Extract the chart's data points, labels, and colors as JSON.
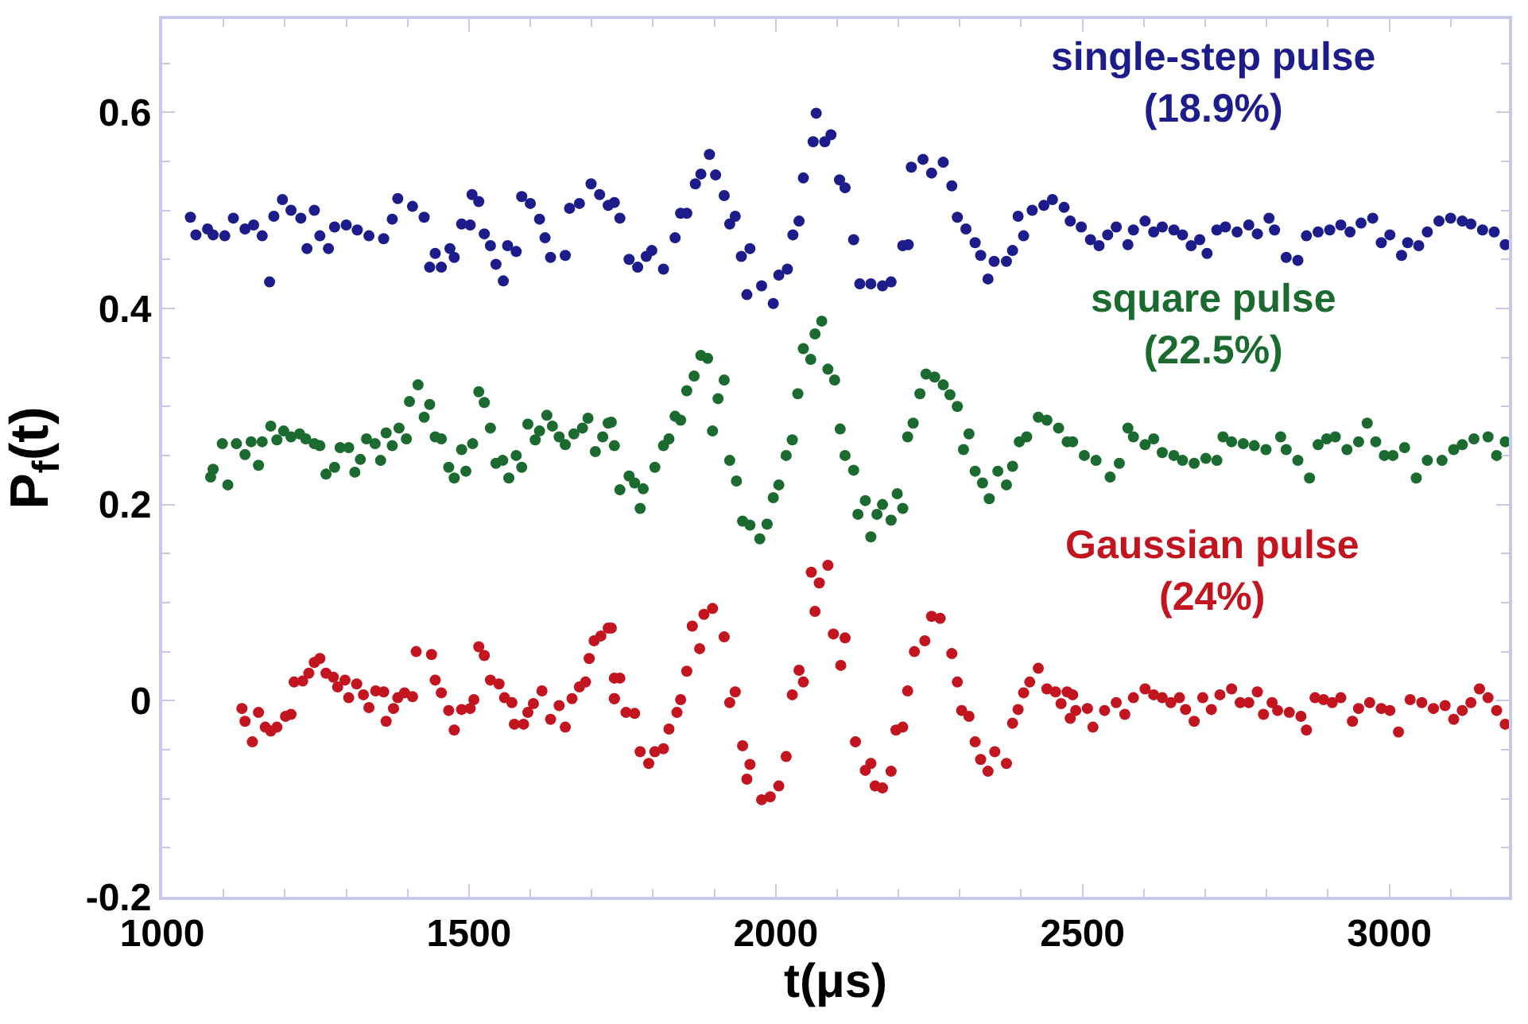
{
  "chart_data": {
    "type": "scatter",
    "xlabel": "t(μs)",
    "ylabel": "P$_{f}$(t)",
    "xlim": [
      1000,
      3195
    ],
    "ylim": [
      -0.2,
      0.695
    ],
    "xticks": [
      1000,
      1500,
      2000,
      2500,
      3000
    ],
    "yticks": [
      -0.2,
      0,
      0.2,
      0.4,
      0.6
    ],
    "legend": false,
    "marker": "circle",
    "series": [
      {
        "name": "single-step pulse\n(18.9%)",
        "color": "#1c1c8a",
        "x": [
          1046,
          1055,
          1074,
          1083,
          1102,
          1116,
          1135,
          1149,
          1163,
          1175,
          1182,
          1196,
          1210,
          1226,
          1236,
          1248,
          1257,
          1271,
          1281,
          1300,
          1318,
          1337,
          1361,
          1375,
          1384,
          1408,
          1427,
          1436,
          1455,
          1445,
          1469,
          1476,
          1488,
          1502,
          1505,
          1516,
          1525,
          1535,
          1544,
          1556,
          1563,
          1577,
          1586,
          1600,
          1615,
          1624,
          1633,
          1657,
          1664,
          1680,
          1699,
          1713,
          1727,
          1737,
          1746,
          1761,
          1775,
          1789,
          1798,
          1817,
          1836,
          1845,
          1855,
          1869,
          1878,
          1892,
          1902,
          1916,
          1925,
          1934,
          1944,
          1958,
          1953,
          1977,
          1996,
          2005,
          2019,
          2028,
          2038,
          2045,
          2061,
          2066,
          2080,
          2090,
          2104,
          2113,
          2127,
          2137,
          2155,
          2174,
          2188,
          2207,
          2216,
          2221,
          2240,
          2254,
          2273,
          2287,
          2296,
          2310,
          2325,
          2334,
          2346,
          2356,
          2376,
          2386,
          2395,
          2404,
          2418,
          2437,
          2451,
          2470,
          2480,
          2498,
          2513,
          2527,
          2541,
          2555,
          2574,
          2583,
          2602,
          2616,
          2630,
          2649,
          2663,
          2677,
          2691,
          2703,
          2719,
          2733,
          2752,
          2771,
          2785,
          2804,
          2813,
          2832,
          2851,
          2865,
          2884,
          2903,
          2921,
          2936,
          2954,
          2973,
          2987,
          3001,
          3020,
          3030,
          3048,
          3062,
          3081,
          3100,
          3119,
          3133,
          3152,
          3171,
          3189
        ],
        "values": [
          0.493,
          0.475,
          0.481,
          0.475,
          0.474,
          0.492,
          0.481,
          0.485,
          0.474,
          0.427,
          0.494,
          0.511,
          0.5,
          0.492,
          0.461,
          0.5,
          0.474,
          0.461,
          0.483,
          0.485,
          0.48,
          0.474,
          0.471,
          0.491,
          0.512,
          0.504,
          0.493,
          0.442,
          0.442,
          0.456,
          0.461,
          0.452,
          0.486,
          0.485,
          0.516,
          0.509,
          0.476,
          0.464,
          0.445,
          0.428,
          0.464,
          0.458,
          0.514,
          0.507,
          0.491,
          0.472,
          0.452,
          0.454,
          0.502,
          0.507,
          0.527,
          0.516,
          0.505,
          0.508,
          0.492,
          0.45,
          0.442,
          0.453,
          0.459,
          0.44,
          0.472,
          0.497,
          0.497,
          0.527,
          0.537,
          0.557,
          0.536,
          0.515,
          0.486,
          0.494,
          0.453,
          0.461,
          0.414,
          0.423,
          0.405,
          0.434,
          0.44,
          0.475,
          0.489,
          0.533,
          0.57,
          0.599,
          0.57,
          0.577,
          0.531,
          0.523,
          0.47,
          0.425,
          0.425,
          0.423,
          0.427,
          0.464,
          0.465,
          0.544,
          0.552,
          0.538,
          0.549,
          0.525,
          0.493,
          0.481,
          0.467,
          0.454,
          0.43,
          0.448,
          0.448,
          0.459,
          0.494,
          0.474,
          0.5,
          0.505,
          0.511,
          0.503,
          0.489,
          0.483,
          0.47,
          0.464,
          0.475,
          0.483,
          0.465,
          0.48,
          0.489,
          0.478,
          0.483,
          0.48,
          0.475,
          0.464,
          0.47,
          0.456,
          0.48,
          0.483,
          0.478,
          0.485,
          0.476,
          0.492,
          0.48,
          0.452,
          0.449,
          0.474,
          0.478,
          0.48,
          0.485,
          0.478,
          0.487,
          0.492,
          0.467,
          0.475,
          0.454,
          0.467,
          0.464,
          0.478,
          0.489,
          0.492,
          0.489,
          0.486,
          0.48,
          0.478,
          0.465
        ]
      },
      {
        "name": "square pulse\n(22.5%)",
        "color": "#1b6b30",
        "x": [
          1083,
          1079,
          1107,
          1098,
          1121,
          1135,
          1145,
          1157,
          1163,
          1177,
          1187,
          1198,
          1210,
          1224,
          1234,
          1248,
          1257,
          1267,
          1281,
          1290,
          1304,
          1314,
          1323,
          1333,
          1347,
          1356,
          1365,
          1375,
          1386,
          1398,
          1403,
          1417,
          1427,
          1436,
          1445,
          1455,
          1467,
          1476,
          1488,
          1495,
          1506,
          1516,
          1525,
          1535,
          1544,
          1555,
          1565,
          1577,
          1586,
          1596,
          1608,
          1615,
          1627,
          1636,
          1647,
          1657,
          1671,
          1685,
          1694,
          1706,
          1718,
          1727,
          1732,
          1737,
          1746,
          1761,
          1770,
          1784,
          1779,
          1803,
          1817,
          1826,
          1836,
          1845,
          1855,
          1867,
          1878,
          1889,
          1897,
          1906,
          1916,
          1925,
          1936,
          1946,
          1958,
          1974,
          1986,
          1996,
          2005,
          2017,
          2027,
          2036,
          2045,
          2057,
          2064,
          2075,
          2085,
          2096,
          2105,
          2113,
          2127,
          2134,
          2146,
          2155,
          2165,
          2174,
          2188,
          2198,
          2207,
          2215,
          2224,
          2235,
          2245,
          2259,
          2273,
          2284,
          2296,
          2306,
          2315,
          2325,
          2337,
          2348,
          2362,
          2376,
          2386,
          2397,
          2409,
          2428,
          2442,
          2461,
          2475,
          2484,
          2503,
          2522,
          2545,
          2560,
          2574,
          2583,
          2602,
          2616,
          2630,
          2649,
          2663,
          2682,
          2701,
          2719,
          2729,
          2743,
          2762,
          2780,
          2799,
          2823,
          2832,
          2851,
          2870,
          2884,
          2898,
          2912,
          2931,
          2950,
          2964,
          2978,
          2992,
          3006,
          3025,
          3044,
          3062,
          3086,
          3105,
          3119,
          3138,
          3161,
          3175,
          3189
        ],
        "values": [
          0.236,
          0.228,
          0.22,
          0.262,
          0.262,
          0.251,
          0.264,
          0.24,
          0.264,
          0.28,
          0.266,
          0.275,
          0.269,
          0.272,
          0.267,
          0.262,
          0.26,
          0.231,
          0.238,
          0.258,
          0.258,
          0.233,
          0.246,
          0.267,
          0.262,
          0.245,
          0.273,
          0.26,
          0.278,
          0.267,
          0.305,
          0.322,
          0.289,
          0.302,
          0.269,
          0.267,
          0.238,
          0.227,
          0.256,
          0.234,
          0.262,
          0.315,
          0.304,
          0.278,
          0.242,
          0.245,
          0.227,
          0.25,
          0.238,
          0.282,
          0.266,
          0.275,
          0.291,
          0.28,
          0.269,
          0.261,
          0.272,
          0.278,
          0.288,
          0.254,
          0.269,
          0.283,
          0.284,
          0.26,
          0.215,
          0.229,
          0.222,
          0.216,
          0.196,
          0.238,
          0.26,
          0.267,
          0.29,
          0.286,
          0.316,
          0.331,
          0.352,
          0.349,
          0.275,
          0.308,
          0.327,
          0.245,
          0.224,
          0.183,
          0.179,
          0.165,
          0.18,
          0.207,
          0.22,
          0.25,
          0.266,
          0.313,
          0.359,
          0.348,
          0.374,
          0.387,
          0.338,
          0.327,
          0.277,
          0.25,
          0.235,
          0.19,
          0.204,
          0.167,
          0.19,
          0.2,
          0.184,
          0.211,
          0.196,
          0.269,
          0.283,
          0.313,
          0.333,
          0.33,
          0.322,
          0.312,
          0.3,
          0.256,
          0.272,
          0.234,
          0.222,
          0.206,
          0.234,
          0.22,
          0.239,
          0.264,
          0.269,
          0.289,
          0.286,
          0.278,
          0.264,
          0.264,
          0.25,
          0.245,
          0.228,
          0.242,
          0.278,
          0.269,
          0.261,
          0.267,
          0.253,
          0.25,
          0.245,
          0.242,
          0.247,
          0.245,
          0.269,
          0.264,
          0.262,
          0.26,
          0.256,
          0.269,
          0.256,
          0.245,
          0.227,
          0.261,
          0.267,
          0.269,
          0.256,
          0.264,
          0.283,
          0.264,
          0.25,
          0.25,
          0.258,
          0.227,
          0.245,
          0.245,
          0.256,
          0.261,
          0.267,
          0.269,
          0.25,
          0.264
        ]
      },
      {
        "name": "Gaussian pulse\n(24%)",
        "color": "#c21520",
        "x": [
          1130,
          1135,
          1147,
          1157,
          1168,
          1177,
          1187,
          1201,
          1210,
          1215,
          1229,
          1239,
          1248,
          1257,
          1267,
          1279,
          1286,
          1298,
          1304,
          1317,
          1328,
          1337,
          1348,
          1361,
          1365,
          1377,
          1384,
          1395,
          1408,
          1414,
          1439,
          1445,
          1455,
          1467,
          1476,
          1488,
          1502,
          1508,
          1516,
          1525,
          1535,
          1549,
          1558,
          1570,
          1574,
          1589,
          1596,
          1605,
          1619,
          1633,
          1647,
          1657,
          1668,
          1680,
          1690,
          1696,
          1704,
          1715,
          1727,
          1737,
          1737,
          1732,
          1746,
          1737,
          1756,
          1770,
          1779,
          1793,
          1803,
          1817,
          1826,
          1839,
          1845,
          1855,
          1876,
          1864,
          1883,
          1897,
          1916,
          1925,
          1934,
          1946,
          1958,
          1953,
          1977,
          1991,
          2005,
          2017,
          2027,
          2038,
          2045,
          2064,
          2058,
          2071,
          2085,
          2094,
          2113,
          2106,
          2130,
          2146,
          2155,
          2162,
          2174,
          2188,
          2196,
          2207,
          2215,
          2226,
          2243,
          2254,
          2268,
          2287,
          2296,
          2303,
          2315,
          2325,
          2334,
          2346,
          2357,
          2376,
          2386,
          2395,
          2404,
          2414,
          2428,
          2442,
          2456,
          2465,
          2480,
          2484,
          2475,
          2489,
          2508,
          2517,
          2536,
          2555,
          2569,
          2583,
          2602,
          2616,
          2630,
          2644,
          2658,
          2668,
          2682,
          2696,
          2710,
          2724,
          2743,
          2757,
          2771,
          2785,
          2795,
          2809,
          2818,
          2837,
          2856,
          2865,
          2879,
          2893,
          2907,
          2921,
          2940,
          2950,
          2968,
          2987,
          3001,
          3015,
          3034,
          3053,
          3072,
          3091,
          3105,
          3119,
          3133,
          3147,
          3161,
          3175,
          3189
        ],
        "values": [
          -0.008,
          -0.021,
          -0.042,
          -0.012,
          -0.027,
          -0.031,
          -0.027,
          -0.016,
          -0.014,
          0.019,
          0.02,
          0.028,
          0.039,
          0.043,
          0.028,
          0.024,
          0.014,
          0.021,
          0.003,
          0.017,
          0.006,
          -0.007,
          0.01,
          0.009,
          -0.021,
          -0.008,
          0.003,
          0.008,
          0.004,
          0.05,
          0.047,
          0.021,
          0.008,
          -0.01,
          -0.03,
          -0.009,
          -0.008,
          0.001,
          0.055,
          0.046,
          0.021,
          0.017,
          0.003,
          -0.002,
          -0.024,
          -0.024,
          -0.012,
          -0.003,
          0.01,
          -0.019,
          -0.005,
          -0.027,
          0.002,
          0.014,
          0.019,
          0.043,
          0.061,
          0.066,
          0.074,
          0.023,
          0.002,
          0.074,
          0.023,
          0.002,
          -0.012,
          -0.013,
          -0.052,
          -0.064,
          -0.052,
          -0.049,
          -0.029,
          -0.012,
          0.001,
          0.03,
          0.053,
          0.076,
          0.088,
          0.094,
          0.065,
          -0.002,
          0.009,
          -0.046,
          -0.065,
          -0.08,
          -0.101,
          -0.098,
          -0.087,
          -0.057,
          0.006,
          0.031,
          0.019,
          0.091,
          0.131,
          0.12,
          0.138,
          0.068,
          0.064,
          0.036,
          -0.042,
          -0.071,
          -0.064,
          -0.087,
          -0.089,
          -0.072,
          -0.03,
          -0.027,
          0.01,
          0.05,
          0.061,
          0.086,
          0.084,
          0.048,
          0.019,
          -0.01,
          -0.016,
          -0.042,
          -0.06,
          -0.072,
          -0.052,
          -0.064,
          -0.023,
          -0.009,
          0.008,
          0.019,
          0.033,
          0.012,
          0.009,
          -0.003,
          -0.018,
          0.006,
          0.009,
          -0.01,
          -0.008,
          -0.027,
          -0.01,
          -0.002,
          -0.014,
          0.003,
          0.012,
          0.006,
          0.003,
          -0.002,
          0.003,
          -0.009,
          -0.021,
          0.003,
          -0.009,
          0.006,
          0.012,
          -0.002,
          -0.002,
          0.009,
          -0.014,
          -0.002,
          -0.01,
          -0.012,
          -0.016,
          -0.03,
          0.003,
          0.001,
          -0.002,
          0.003,
          -0.021,
          -0.008,
          -0.002,
          -0.008,
          -0.01,
          -0.032,
          0.001,
          -0.002,
          -0.008,
          -0.005,
          -0.019,
          -0.01,
          -0.002,
          0.012,
          0.003,
          -0.01,
          -0.024
        ]
      }
    ]
  }
}
